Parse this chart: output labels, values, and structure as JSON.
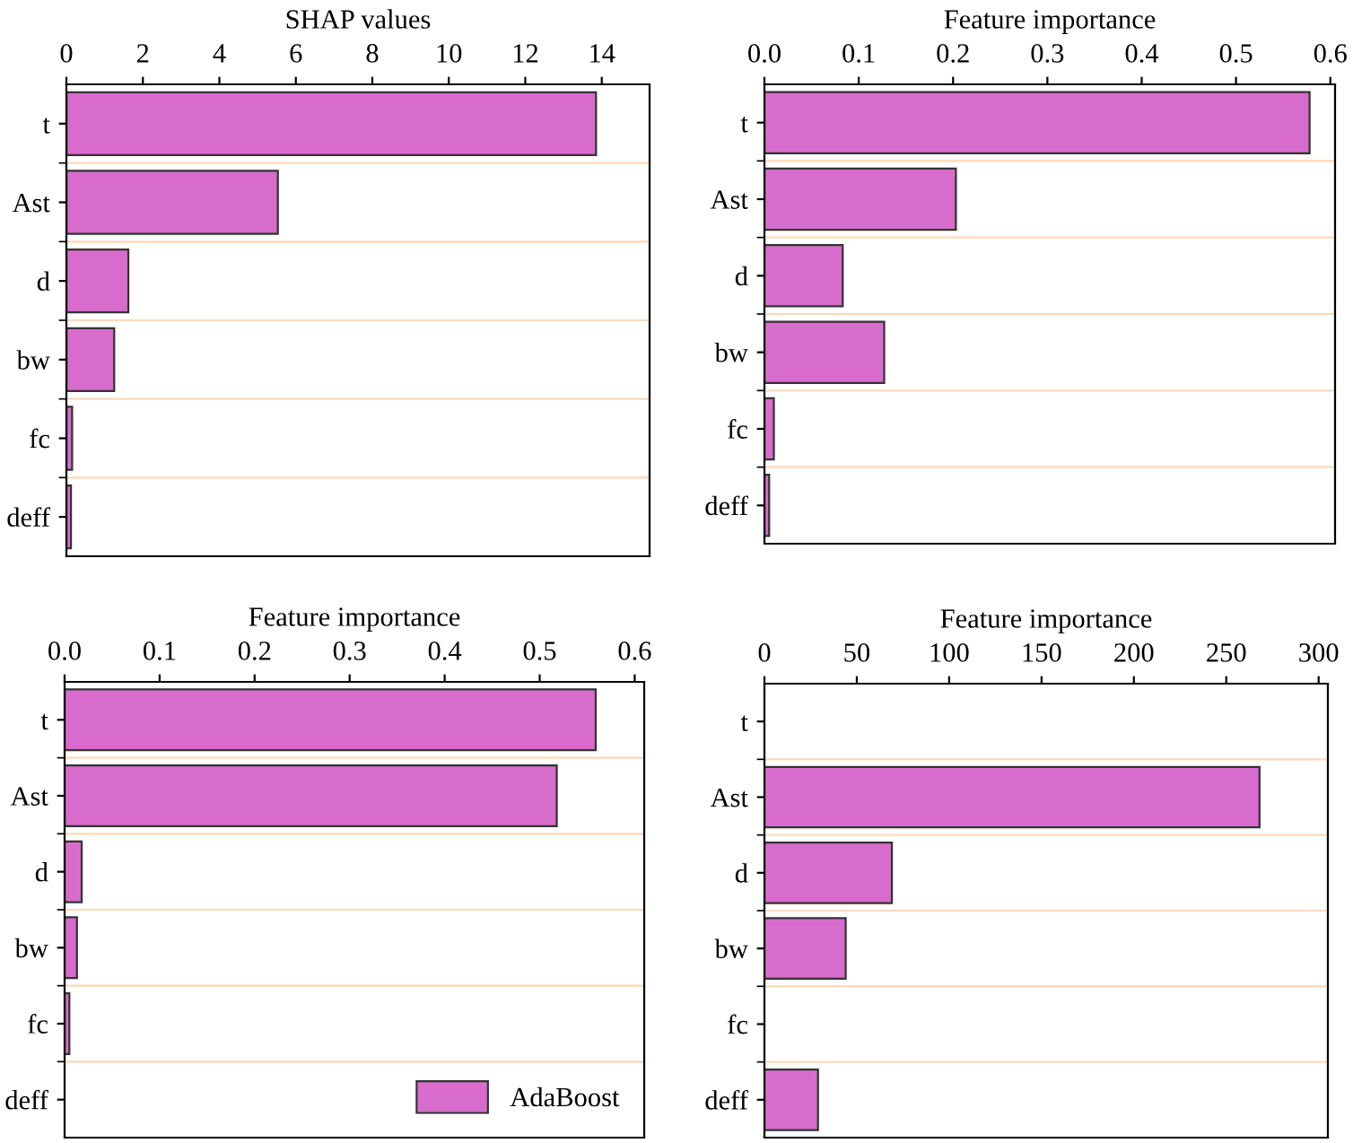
{
  "chart_data": [
    {
      "type": "bar",
      "orientation": "horizontal",
      "xlabel": "SHAP values",
      "categories": [
        "t",
        "Ast",
        "d",
        "bw",
        "fc",
        "deff"
      ],
      "series": [
        {
          "color": "#d86ccc",
          "values": [
            13.85,
            5.53,
            1.62,
            1.25,
            0.15,
            0.12
          ]
        }
      ],
      "xlim": [
        0,
        15.25
      ],
      "xticks": [
        0,
        2,
        4,
        6,
        8,
        10,
        12,
        14
      ],
      "grid": "y",
      "legend": false
    },
    {
      "type": "bar",
      "orientation": "horizontal",
      "xlabel": "Feature importance",
      "categories": [
        "t",
        "Ast",
        "d",
        "bw",
        "fc",
        "deff"
      ],
      "series": [
        {
          "color": "#d86ccc",
          "values": [
            0.578,
            0.203,
            0.083,
            0.127,
            0.01,
            0.005
          ]
        }
      ],
      "xlim": [
        0,
        0.605
      ],
      "xticks": [
        {
          "value": 0,
          "label": "0.0"
        },
        0.1,
        0.2,
        0.3,
        0.4,
        0.5,
        0.6
      ],
      "grid": "y",
      "legend": false
    },
    {
      "type": "bar",
      "orientation": "horizontal",
      "xlabel": "Feature importance",
      "categories": [
        "t",
        "Ast",
        "d",
        "bw",
        "fc",
        "deff"
      ],
      "series": [
        {
          "name": "AdaBoost",
          "color": "#d86ccc",
          "values": [
            0.559,
            0.518,
            0.018,
            0.013,
            0.005,
            0
          ]
        }
      ],
      "xlim": [
        0,
        0.61
      ],
      "xticks": [
        {
          "value": 0,
          "label": "0.0"
        },
        0.1,
        0.2,
        0.3,
        0.4,
        0.5,
        0.6
      ],
      "grid": "y",
      "legend": "bottom right"
    },
    {
      "type": "bar",
      "orientation": "horizontal",
      "xlabel": "Feature importance",
      "categories": [
        "t",
        "Ast",
        "d",
        "bw",
        "fc",
        "deff"
      ],
      "series": [
        {
          "color": "#d86ccc",
          "values": [
            0,
            268,
            69,
            44,
            0,
            29
          ]
        }
      ],
      "xlim": [
        0,
        305
      ],
      "xticks": [
        0,
        50,
        100,
        150,
        200,
        250,
        300
      ],
      "grid": "y",
      "legend": false
    }
  ]
}
